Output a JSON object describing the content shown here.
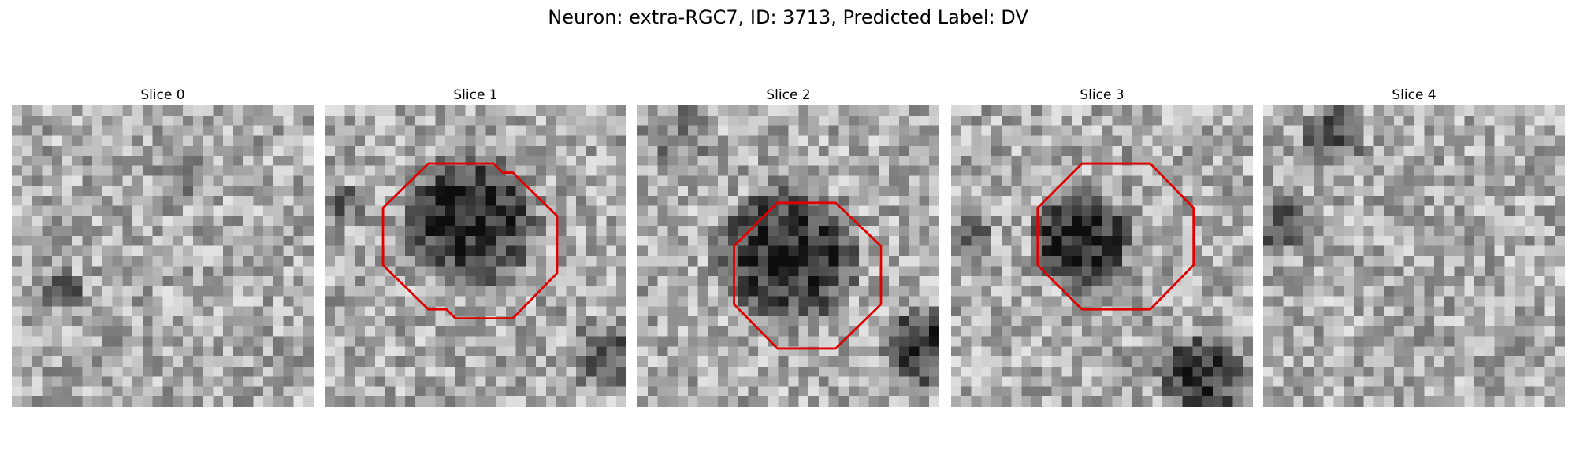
{
  "title": "Neuron: extra-RGC7, ID: 3713, Predicted Label: DV",
  "panels": [
    {
      "label": "Slice 0"
    },
    {
      "label": "Slice 1"
    },
    {
      "label": "Slice 2"
    },
    {
      "label": "Slice 3"
    },
    {
      "label": "Slice 4"
    }
  ]
}
